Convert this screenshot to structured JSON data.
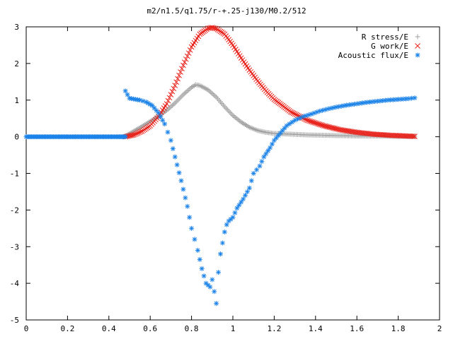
{
  "chart_data": {
    "type": "scatter",
    "title": "m2/n1.5/q1.75/r-+.25-j130/M0.2/512",
    "xlabel": "",
    "ylabel": "",
    "xlim": [
      0,
      2
    ],
    "ylim": [
      -5,
      3
    ],
    "x_ticks": [
      "0",
      "0.2",
      "0.4",
      "0.6",
      "0.8",
      "1",
      "1.2",
      "1.4",
      "1.6",
      "1.8",
      "2"
    ],
    "y_ticks": [
      "3",
      "2",
      "1",
      "0",
      "-1",
      "-2",
      "-3",
      "-4",
      "-5"
    ],
    "grid": false,
    "legend_position": "top-right",
    "series": [
      {
        "name": "R stress/E",
        "marker": "+",
        "color": "#a0a0a0",
        "x": [
          0.48,
          0.52,
          0.56,
          0.6,
          0.64,
          0.68,
          0.72,
          0.76,
          0.8,
          0.82,
          0.84,
          0.88,
          0.92,
          0.96,
          1.0,
          1.04,
          1.08,
          1.12,
          1.16,
          1.2,
          1.28,
          1.36,
          1.44,
          1.52,
          1.6,
          1.7,
          1.8,
          1.88
        ],
        "y": [
          0.02,
          0.15,
          0.28,
          0.42,
          0.56,
          0.72,
          0.92,
          1.15,
          1.35,
          1.42,
          1.4,
          1.28,
          1.08,
          0.82,
          0.58,
          0.4,
          0.26,
          0.17,
          0.12,
          0.09,
          0.07,
          0.05,
          0.04,
          0.03,
          0.02,
          0.02,
          0.01,
          0.01
        ]
      },
      {
        "name": "G work/E",
        "marker": "x",
        "color": "#e8211a",
        "x": [
          0.48,
          0.52,
          0.56,
          0.6,
          0.64,
          0.68,
          0.72,
          0.76,
          0.8,
          0.84,
          0.88,
          0.9,
          0.92,
          0.96,
          1.0,
          1.04,
          1.08,
          1.12,
          1.16,
          1.2,
          1.28,
          1.36,
          1.44,
          1.52,
          1.6,
          1.68,
          1.76,
          1.84,
          1.88
        ],
        "y": [
          0.0,
          0.05,
          0.15,
          0.3,
          0.55,
          0.9,
          1.4,
          1.95,
          2.45,
          2.8,
          2.96,
          2.98,
          2.95,
          2.8,
          2.5,
          2.15,
          1.82,
          1.52,
          1.25,
          1.02,
          0.68,
          0.45,
          0.3,
          0.19,
          0.12,
          0.07,
          0.04,
          0.02,
          0.01
        ]
      },
      {
        "name": "Acoustic flux/E",
        "marker": "*",
        "color": "#1a82e8",
        "x": [
          0.48,
          0.5,
          0.52,
          0.55,
          0.58,
          0.61,
          0.64,
          0.67,
          0.7,
          0.72,
          0.75,
          0.78,
          0.8,
          0.83,
          0.85,
          0.87,
          0.89,
          0.9,
          0.92,
          0.93,
          0.94,
          0.95,
          0.96,
          0.97,
          0.98,
          1.0,
          1.02,
          1.05,
          1.08,
          1.1,
          1.13,
          1.15,
          1.18,
          1.2,
          1.23,
          1.26,
          1.3,
          1.34,
          1.38,
          1.42,
          1.46,
          1.5,
          1.55,
          1.6,
          1.65,
          1.7,
          1.75,
          1.8,
          1.85,
          1.88
        ],
        "y": [
          1.25,
          1.05,
          1.03,
          1.0,
          0.95,
          0.85,
          0.65,
          0.35,
          -0.1,
          -0.55,
          -1.2,
          -1.9,
          -2.5,
          -3.1,
          -3.6,
          -4.0,
          -4.1,
          -3.9,
          -4.55,
          -3.7,
          -3.2,
          -2.9,
          -2.6,
          -2.4,
          -2.3,
          -2.2,
          -1.95,
          -1.7,
          -1.4,
          -1.0,
          -0.8,
          -0.55,
          -0.3,
          -0.1,
          0.1,
          0.3,
          0.45,
          0.55,
          0.62,
          0.7,
          0.76,
          0.81,
          0.86,
          0.9,
          0.94,
          0.97,
          1.0,
          1.02,
          1.04,
          1.06
        ]
      },
      {
        "name": "",
        "marker": "*",
        "color": "#1a82e8",
        "x": [
          0.0,
          0.05,
          0.1,
          0.15,
          0.2,
          0.25,
          0.3,
          0.35,
          0.4,
          0.45,
          0.48
        ],
        "y": [
          0,
          0,
          0,
          0,
          0,
          0,
          0,
          0,
          0,
          0,
          0
        ]
      }
    ]
  }
}
